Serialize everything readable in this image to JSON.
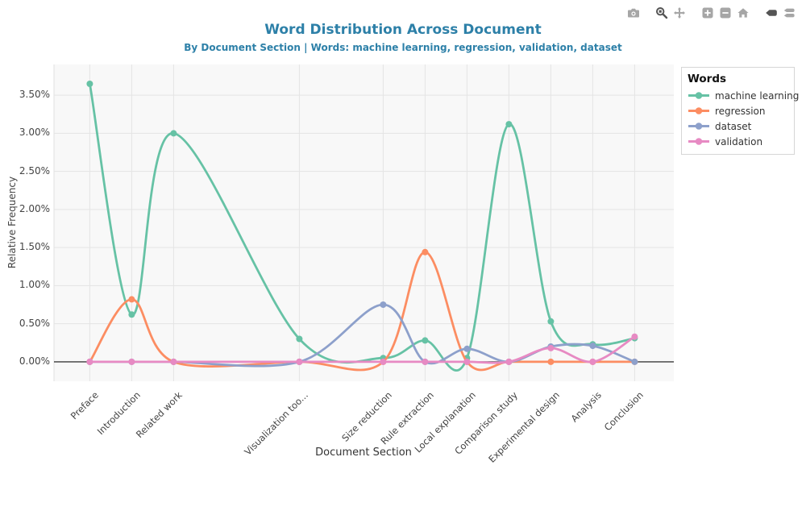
{
  "header": {
    "title": "Word Distribution Across Document",
    "subtitle": "By Document Section | Words: machine learning, regression, validation, dataset"
  },
  "modebar": {
    "buttons": [
      {
        "name": "camera",
        "group": 0,
        "active": false
      },
      {
        "name": "zoom",
        "group": 1,
        "active": true
      },
      {
        "name": "pan",
        "group": 1,
        "active": false
      },
      {
        "name": "zoom-in",
        "group": 2,
        "active": false
      },
      {
        "name": "zoom-out",
        "group": 2,
        "active": false
      },
      {
        "name": "home",
        "group": 2,
        "active": false
      },
      {
        "name": "hover-closest",
        "group": 3,
        "active": true
      },
      {
        "name": "hover-compare",
        "group": 3,
        "active": false
      }
    ]
  },
  "chart_data": {
    "type": "line",
    "line_shape": "spline",
    "title": "Word Distribution Across Document",
    "subtitle": "By Document Section | Words: machine learning, regression, validation, dataset",
    "xlabel": "Document Section",
    "ylabel": "Relative Frequency",
    "legend_title": "Words",
    "legend_position": "right",
    "grid": true,
    "categories": [
      "Preface",
      "Introduction",
      "Related work",
      "Visualization too...",
      "Size reduction",
      "Rule extraction",
      "Local explanation",
      "Comparison study",
      "Experimental design",
      "Analysis",
      "Conclusion"
    ],
    "x_positions": [
      0,
      1,
      2,
      5,
      7,
      8,
      9,
      10,
      11,
      12,
      13
    ],
    "x_range": [
      -0.87,
      13.93
    ],
    "y_range": [
      -0.26,
      3.9
    ],
    "y_ticks": [
      {
        "label": "0.00%",
        "value": 0
      },
      {
        "label": "0.50%",
        "value": 0.5
      },
      {
        "label": "1.00%",
        "value": 1
      },
      {
        "label": "1.50%",
        "value": 1.5
      },
      {
        "label": "2.00%",
        "value": 2
      },
      {
        "label": "2.50%",
        "value": 2.5
      },
      {
        "label": "3.00%",
        "value": 3
      },
      {
        "label": "3.50%",
        "value": 3.5
      }
    ],
    "series": [
      {
        "name": "machine learning",
        "color": "#66c2a5",
        "values": [
          3.65,
          0.62,
          3.0,
          0.3,
          0.05,
          0.28,
          0.05,
          3.12,
          0.53,
          0.23,
          0.31
        ]
      },
      {
        "name": "regression",
        "color": "#fc8d62",
        "values": [
          0,
          0.82,
          0,
          0,
          0,
          1.44,
          0,
          0,
          0,
          0,
          0
        ]
      },
      {
        "name": "dataset",
        "color": "#8da0cb",
        "values": [
          0,
          0,
          0,
          0,
          0.75,
          0,
          0.17,
          0,
          0.2,
          0.21,
          0
        ]
      },
      {
        "name": "validation",
        "color": "#e78ac3",
        "values": [
          0,
          0,
          0,
          0,
          0,
          0,
          0,
          0,
          0.18,
          0,
          0.33
        ]
      }
    ]
  },
  "colors": {
    "title": "#2d80a8",
    "plot_bg": "#f8f8f8",
    "grid": "#e4e4e4",
    "zero_line": "#3a3a3a",
    "modebar_active": "#545454",
    "modebar_inactive": "#a6a6a6"
  }
}
